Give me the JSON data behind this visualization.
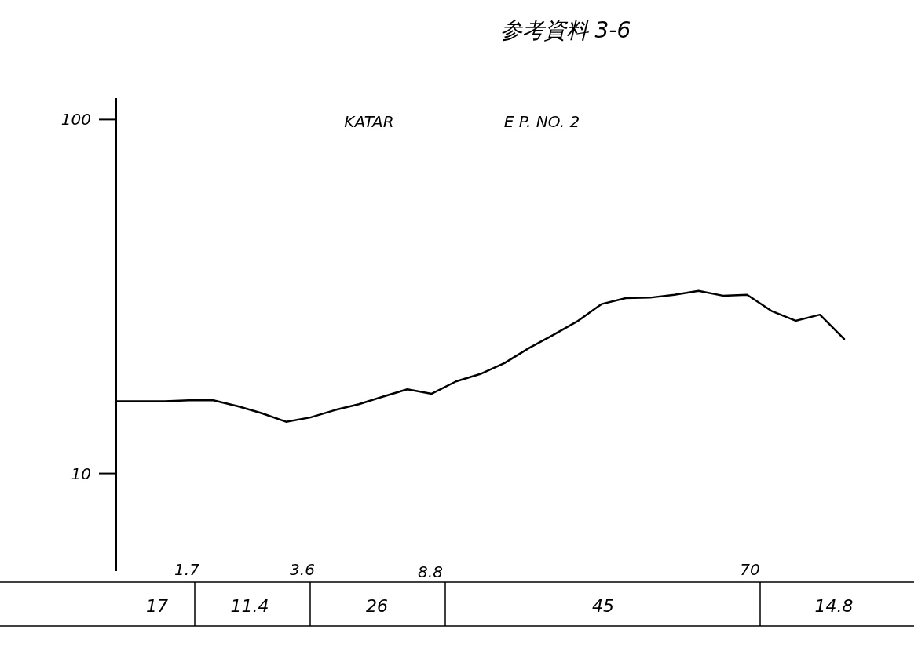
{
  "chart_data": {
    "type": "line",
    "title": "参考資料 3-6",
    "annotations": [
      "KATAR",
      "E P. NO. 2",
      "17",
      "11.4",
      "26",
      "45",
      "14.8",
      "1.7",
      "3.6",
      "8.8",
      "70"
    ],
    "categories": [
      null,
      null,
      null,
      null,
      null,
      null,
      null,
      null,
      null,
      null,
      null,
      null,
      null,
      null,
      null,
      null,
      null,
      null,
      null,
      null,
      null,
      null,
      null,
      null,
      null,
      null,
      null,
      null,
      null,
      null,
      null
    ],
    "series": [
      {
        "color": "#000000",
        "values": [
          16.0,
          16.0,
          16.0,
          16.1,
          16.1,
          15.5,
          14.8,
          14.0,
          14.4,
          15.1,
          15.7,
          16.5,
          17.3,
          16.8,
          18.2,
          19.1,
          20.5,
          22.6,
          24.6,
          26.9,
          30.1,
          31.3,
          31.4,
          32.0,
          32.8,
          31.8,
          32.0,
          28.8,
          27.0,
          28.1,
          24.0
        ]
      }
    ],
    "log": true,
    "ylim": [
      5.3,
      115
    ],
    "yticks": [
      10,
      100
    ],
    "grid": false
  }
}
